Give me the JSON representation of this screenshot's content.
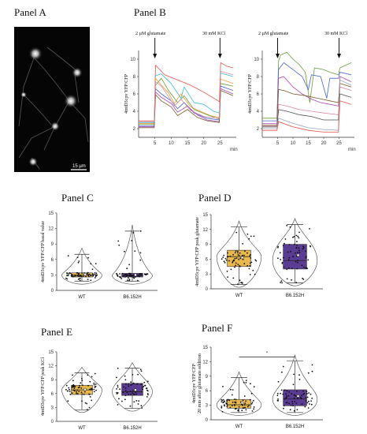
{
  "panels": {
    "A": {
      "title": "Panel A",
      "scale_label": "15 µm"
    },
    "B": {
      "title": "Panel B",
      "annotations": {
        "glutamate": "2 µM glutamate",
        "kcl": "30 mM KCl"
      },
      "units": [
        "min",
        "min"
      ]
    },
    "C": {
      "title": "Panel C"
    },
    "D": {
      "title": "Panel D"
    },
    "E": {
      "title": "Panel E"
    },
    "F": {
      "title": "Panel F",
      "significance": "*"
    }
  },
  "colors": {
    "wt": "#E8B84A",
    "mut": "#5B3C93",
    "traces": [
      "#e5534b",
      "#3bbdd4",
      "#f0a030",
      "#6a9c3b",
      "#4a62c9",
      "#b04ab0",
      "#7a5a2a",
      "#d98aa6",
      "#4d4d4d",
      "#9aa6b2"
    ]
  },
  "chart_data": [
    {
      "type": "line",
      "panel": "B-left",
      "xlabel": "min",
      "ylabel": "4mtD3cpv YFP/CFP",
      "xticks": [
        5,
        10,
        15,
        20,
        25
      ],
      "yticks": [
        2,
        4,
        6,
        8,
        10
      ],
      "xlim": [
        0,
        30
      ],
      "ylim": [
        1,
        11
      ],
      "arrows": [
        5,
        25
      ],
      "series": [
        {
          "values": [
            [
              0,
              2.9
            ],
            [
              4.8,
              2.9
            ],
            [
              5.2,
              9.3
            ],
            [
              6,
              9.0
            ],
            [
              8,
              8.2
            ],
            [
              12,
              7.6
            ],
            [
              16,
              7.0
            ],
            [
              20,
              6.2
            ],
            [
              24,
              5.3
            ],
            [
              24.8,
              5.1
            ],
            [
              25.2,
              9.6
            ],
            [
              27,
              9.2
            ],
            [
              29,
              9.0
            ]
          ]
        },
        {
          "values": [
            [
              0,
              2.7
            ],
            [
              4.8,
              2.7
            ],
            [
              5.2,
              8.1
            ],
            [
              7,
              8.3
            ],
            [
              10,
              7.2
            ],
            [
              13,
              5.5
            ],
            [
              14,
              6.8
            ],
            [
              17,
              5.0
            ],
            [
              20,
              4.8
            ],
            [
              23,
              4.0
            ],
            [
              24.8,
              3.8
            ],
            [
              25.2,
              8.4
            ],
            [
              29,
              8.0
            ]
          ]
        },
        {
          "values": [
            [
              0,
              2.6
            ],
            [
              4.8,
              2.6
            ],
            [
              5.2,
              7.8
            ],
            [
              7,
              7.0
            ],
            [
              9,
              6.2
            ],
            [
              11,
              4.9
            ],
            [
              13,
              6.0
            ],
            [
              16,
              4.5
            ],
            [
              19,
              4.0
            ],
            [
              22,
              3.5
            ],
            [
              24.8,
              3.3
            ],
            [
              25.2,
              7.7
            ],
            [
              29,
              7.2
            ]
          ]
        },
        {
          "values": [
            [
              0,
              2.5
            ],
            [
              4.8,
              2.5
            ],
            [
              5.2,
              7.0
            ],
            [
              7,
              7.8
            ],
            [
              9,
              6.5
            ],
            [
              12,
              5.0
            ],
            [
              14,
              5.8
            ],
            [
              17,
              4.2
            ],
            [
              21,
              3.6
            ],
            [
              24.8,
              3.1
            ],
            [
              25.2,
              7.2
            ],
            [
              29,
              6.9
            ]
          ]
        },
        {
          "values": [
            [
              0,
              2.3
            ],
            [
              4.8,
              2.3
            ],
            [
              5.2,
              6.6
            ],
            [
              7,
              6.0
            ],
            [
              10,
              5.2
            ],
            [
              12,
              4.3
            ],
            [
              14,
              5.0
            ],
            [
              17,
              3.8
            ],
            [
              21,
              3.2
            ],
            [
              24.8,
              3.0
            ],
            [
              25.2,
              6.9
            ],
            [
              29,
              6.4
            ]
          ]
        },
        {
          "values": [
            [
              0,
              2.2
            ],
            [
              4.8,
              2.2
            ],
            [
              5.2,
              6.2
            ],
            [
              7,
              5.6
            ],
            [
              10,
              4.9
            ],
            [
              12,
              3.9
            ],
            [
              15,
              4.6
            ],
            [
              18,
              3.6
            ],
            [
              21,
              3.0
            ],
            [
              24.8,
              2.8
            ],
            [
              25.2,
              6.6
            ],
            [
              29,
              6.0
            ]
          ]
        },
        {
          "values": [
            [
              0,
              2.1
            ],
            [
              4.8,
              2.1
            ],
            [
              5.2,
              5.9
            ],
            [
              7,
              5.2
            ],
            [
              10,
              4.5
            ],
            [
              12,
              3.5
            ],
            [
              15,
              4.2
            ],
            [
              18,
              3.3
            ],
            [
              21,
              2.9
            ],
            [
              24.8,
              2.7
            ],
            [
              25.2,
              6.4
            ],
            [
              29,
              5.8
            ]
          ]
        },
        {
          "values": [
            [
              0,
              2.8
            ],
            [
              4.8,
              2.8
            ],
            [
              5.2,
              7.4
            ],
            [
              7,
              6.9
            ],
            [
              9,
              5.8
            ],
            [
              11,
              4.6
            ],
            [
              13,
              5.4
            ],
            [
              16,
              4.1
            ],
            [
              20,
              3.4
            ],
            [
              24.8,
              3.2
            ],
            [
              25.2,
              8.6
            ],
            [
              29,
              8.2
            ]
          ]
        }
      ]
    },
    {
      "type": "line",
      "panel": "B-right",
      "xlabel": "min",
      "ylabel": "4mtD3cpv YFP/CFP",
      "xticks": [
        5,
        10,
        15,
        20,
        25
      ],
      "yticks": [
        2,
        4,
        6,
        8,
        10
      ],
      "xlim": [
        0,
        30
      ],
      "ylim": [
        1,
        11
      ],
      "arrows": [
        5,
        25
      ],
      "series": [
        {
          "values": [
            [
              0,
              3.2
            ],
            [
              4.8,
              3.2
            ],
            [
              5.3,
              9.8
            ],
            [
              6,
              10.5
            ],
            [
              8,
              10.8
            ],
            [
              10,
              10.0
            ],
            [
              12,
              9.4
            ],
            [
              14,
              8.5
            ],
            [
              15.5,
              5.0
            ],
            [
              17,
              9.0
            ],
            [
              20,
              8.8
            ],
            [
              22,
              8.5
            ],
            [
              24.8,
              8.2
            ],
            [
              25.3,
              9.0
            ],
            [
              29,
              9.6
            ]
          ]
        },
        {
          "values": [
            [
              0,
              2.9
            ],
            [
              4.8,
              2.9
            ],
            [
              5.3,
              8.8
            ],
            [
              7,
              9.6
            ],
            [
              10,
              8.8
            ],
            [
              13,
              8.0
            ],
            [
              15,
              6.5
            ],
            [
              16,
              8.2
            ],
            [
              19,
              8.0
            ],
            [
              21,
              5.5
            ],
            [
              22,
              7.8
            ],
            [
              24.8,
              7.8
            ],
            [
              25.3,
              8.5
            ],
            [
              29,
              8.2
            ]
          ]
        },
        {
          "values": [
            [
              0,
              2.6
            ],
            [
              4.8,
              2.6
            ],
            [
              5.3,
              7.8
            ],
            [
              7,
              8.0
            ],
            [
              10,
              6.8
            ],
            [
              13,
              6.0
            ],
            [
              16,
              5.4
            ],
            [
              19,
              5.0
            ],
            [
              22,
              4.8
            ],
            [
              24.8,
              4.6
            ],
            [
              25.3,
              8.0
            ],
            [
              29,
              7.4
            ]
          ]
        },
        {
          "values": [
            [
              0,
              2.4
            ],
            [
              4.8,
              2.4
            ],
            [
              5.3,
              6.5
            ],
            [
              7,
              6.4
            ],
            [
              10,
              6.0
            ],
            [
              14,
              5.8
            ],
            [
              18,
              5.5
            ],
            [
              22,
              5.2
            ],
            [
              24.8,
              5.0
            ],
            [
              25.3,
              7.2
            ],
            [
              29,
              6.8
            ]
          ]
        },
        {
          "values": [
            [
              0,
              2.3
            ],
            [
              4.8,
              2.3
            ],
            [
              5.3,
              4.8
            ],
            [
              8,
              4.6
            ],
            [
              12,
              4.2
            ],
            [
              16,
              4.0
            ],
            [
              20,
              3.8
            ],
            [
              24.8,
              3.6
            ],
            [
              25.3,
              6.8
            ],
            [
              29,
              6.4
            ]
          ]
        },
        {
          "values": [
            [
              0,
              2.2
            ],
            [
              4.8,
              2.2
            ],
            [
              5.3,
              4.2
            ],
            [
              8,
              4.0
            ],
            [
              12,
              3.6
            ],
            [
              16,
              3.4
            ],
            [
              20,
              3.0
            ],
            [
              24.8,
              3.0
            ],
            [
              25.3,
              6.0
            ],
            [
              29,
              5.6
            ]
          ]
        },
        {
          "values": [
            [
              0,
              2.0
            ],
            [
              4.8,
              2.0
            ],
            [
              5.3,
              3.2
            ],
            [
              10,
              2.6
            ],
            [
              15,
              2.1
            ],
            [
              20,
              1.9
            ],
            [
              24.8,
              1.8
            ],
            [
              25.3,
              7.6
            ],
            [
              29,
              7.0
            ]
          ]
        },
        {
          "values": [
            [
              0,
              1.8
            ],
            [
              4.8,
              1.8
            ],
            [
              5.3,
              2.8
            ],
            [
              10,
              2.2
            ],
            [
              15,
              1.8
            ],
            [
              20,
              1.6
            ],
            [
              24.8,
              1.6
            ],
            [
              25.3,
              5.2
            ],
            [
              29,
              4.8
            ]
          ]
        }
      ]
    },
    {
      "type": "box",
      "panel": "C",
      "ylabel": "4mtD3cpv YFP/CFP basal value",
      "categories": [
        "WT",
        "B6.152H"
      ],
      "ylim": [
        0,
        15
      ],
      "yticks": [
        0,
        3,
        6,
        9,
        12,
        15
      ],
      "boxes": [
        {
          "name": "WT",
          "whisker_low": 1.8,
          "q1": 2.6,
          "median": 3.0,
          "q3": 3.4,
          "whisker_high": 7.0,
          "mean": 3.1
        },
        {
          "name": "B6.152H",
          "whisker_low": 1.8,
          "q1": 2.6,
          "median": 2.9,
          "q3": 3.3,
          "whisker_high": 11.5,
          "mean": 3.0
        }
      ]
    },
    {
      "type": "box",
      "panel": "D",
      "ylabel": "4mtD3cpv YFP/CFP peak glutamate",
      "categories": [
        "WT",
        "B6.152H"
      ],
      "ylim": [
        0,
        15
      ],
      "yticks": [
        0,
        3,
        6,
        9,
        12,
        15
      ],
      "boxes": [
        {
          "name": "WT",
          "whisker_low": 0.9,
          "q1": 4.5,
          "median": 6.5,
          "q3": 7.8,
          "whisker_high": 12.5,
          "mean": 6.3
        },
        {
          "name": "B6.152H",
          "whisker_low": 1.2,
          "q1": 4.0,
          "median": 5.7,
          "q3": 9.0,
          "whisker_high": 13.0,
          "mean": 6.8
        }
      ]
    },
    {
      "type": "box",
      "panel": "E",
      "ylabel": "4mtD3cpv YFP/CFP peak KCl",
      "categories": [
        "WT",
        "B6.152H"
      ],
      "ylim": [
        0,
        15
      ],
      "yticks": [
        0,
        3,
        6,
        9,
        12,
        15
      ],
      "boxes": [
        {
          "name": "WT",
          "whisker_low": 2.5,
          "q1": 5.8,
          "median": 6.8,
          "q3": 7.8,
          "whisker_high": 10.5,
          "mean": 6.9
        },
        {
          "name": "B6.152H",
          "whisker_low": 2.8,
          "q1": 5.6,
          "median": 6.4,
          "q3": 8.2,
          "whisker_high": 11.5,
          "mean": 6.8
        }
      ]
    },
    {
      "type": "box",
      "panel": "F",
      "ylabel": "4mtD3cpv YFP/CFP 20 min after glutamate addition",
      "categories": [
        "WT",
        "B6.152H"
      ],
      "ylim": [
        0,
        15
      ],
      "yticks": [
        0,
        3,
        6,
        9,
        12,
        15
      ],
      "significance": {
        "between": [
          "WT",
          "B6.152H"
        ],
        "label": "*",
        "y": 13.0
      },
      "boxes": [
        {
          "name": "WT",
          "whisker_low": 1.5,
          "q1": 2.4,
          "median": 3.1,
          "q3": 4.2,
          "whisker_high": 8.7,
          "mean": 3.5
        },
        {
          "name": "B6.152H",
          "whisker_low": 1.5,
          "q1": 2.9,
          "median": 4.3,
          "q3": 6.2,
          "whisker_high": 12.2,
          "mean": 4.9
        }
      ]
    }
  ]
}
